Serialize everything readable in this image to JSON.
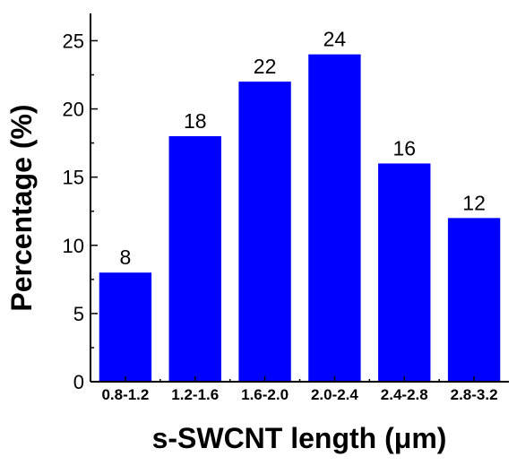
{
  "chart_data": {
    "type": "bar",
    "categories": [
      "0.8-1.2",
      "1.2-1.6",
      "1.6-2.0",
      "2.0-2.4",
      "2.4-2.8",
      "2.8-3.2"
    ],
    "values": [
      8,
      18,
      22,
      24,
      16,
      12
    ],
    "data_labels": [
      "8",
      "18",
      "22",
      "24",
      "16",
      "12"
    ],
    "xlabel": "s-SWCNT length (μm)",
    "ylabel": "Percentage (%)",
    "ylim": [
      0,
      27
    ],
    "yticks": [
      0,
      5,
      10,
      15,
      20,
      25
    ],
    "ytick_labels": [
      "0",
      "5",
      "10",
      "15",
      "20",
      "25"
    ],
    "grid": false,
    "bar_color": "#0000ff"
  }
}
